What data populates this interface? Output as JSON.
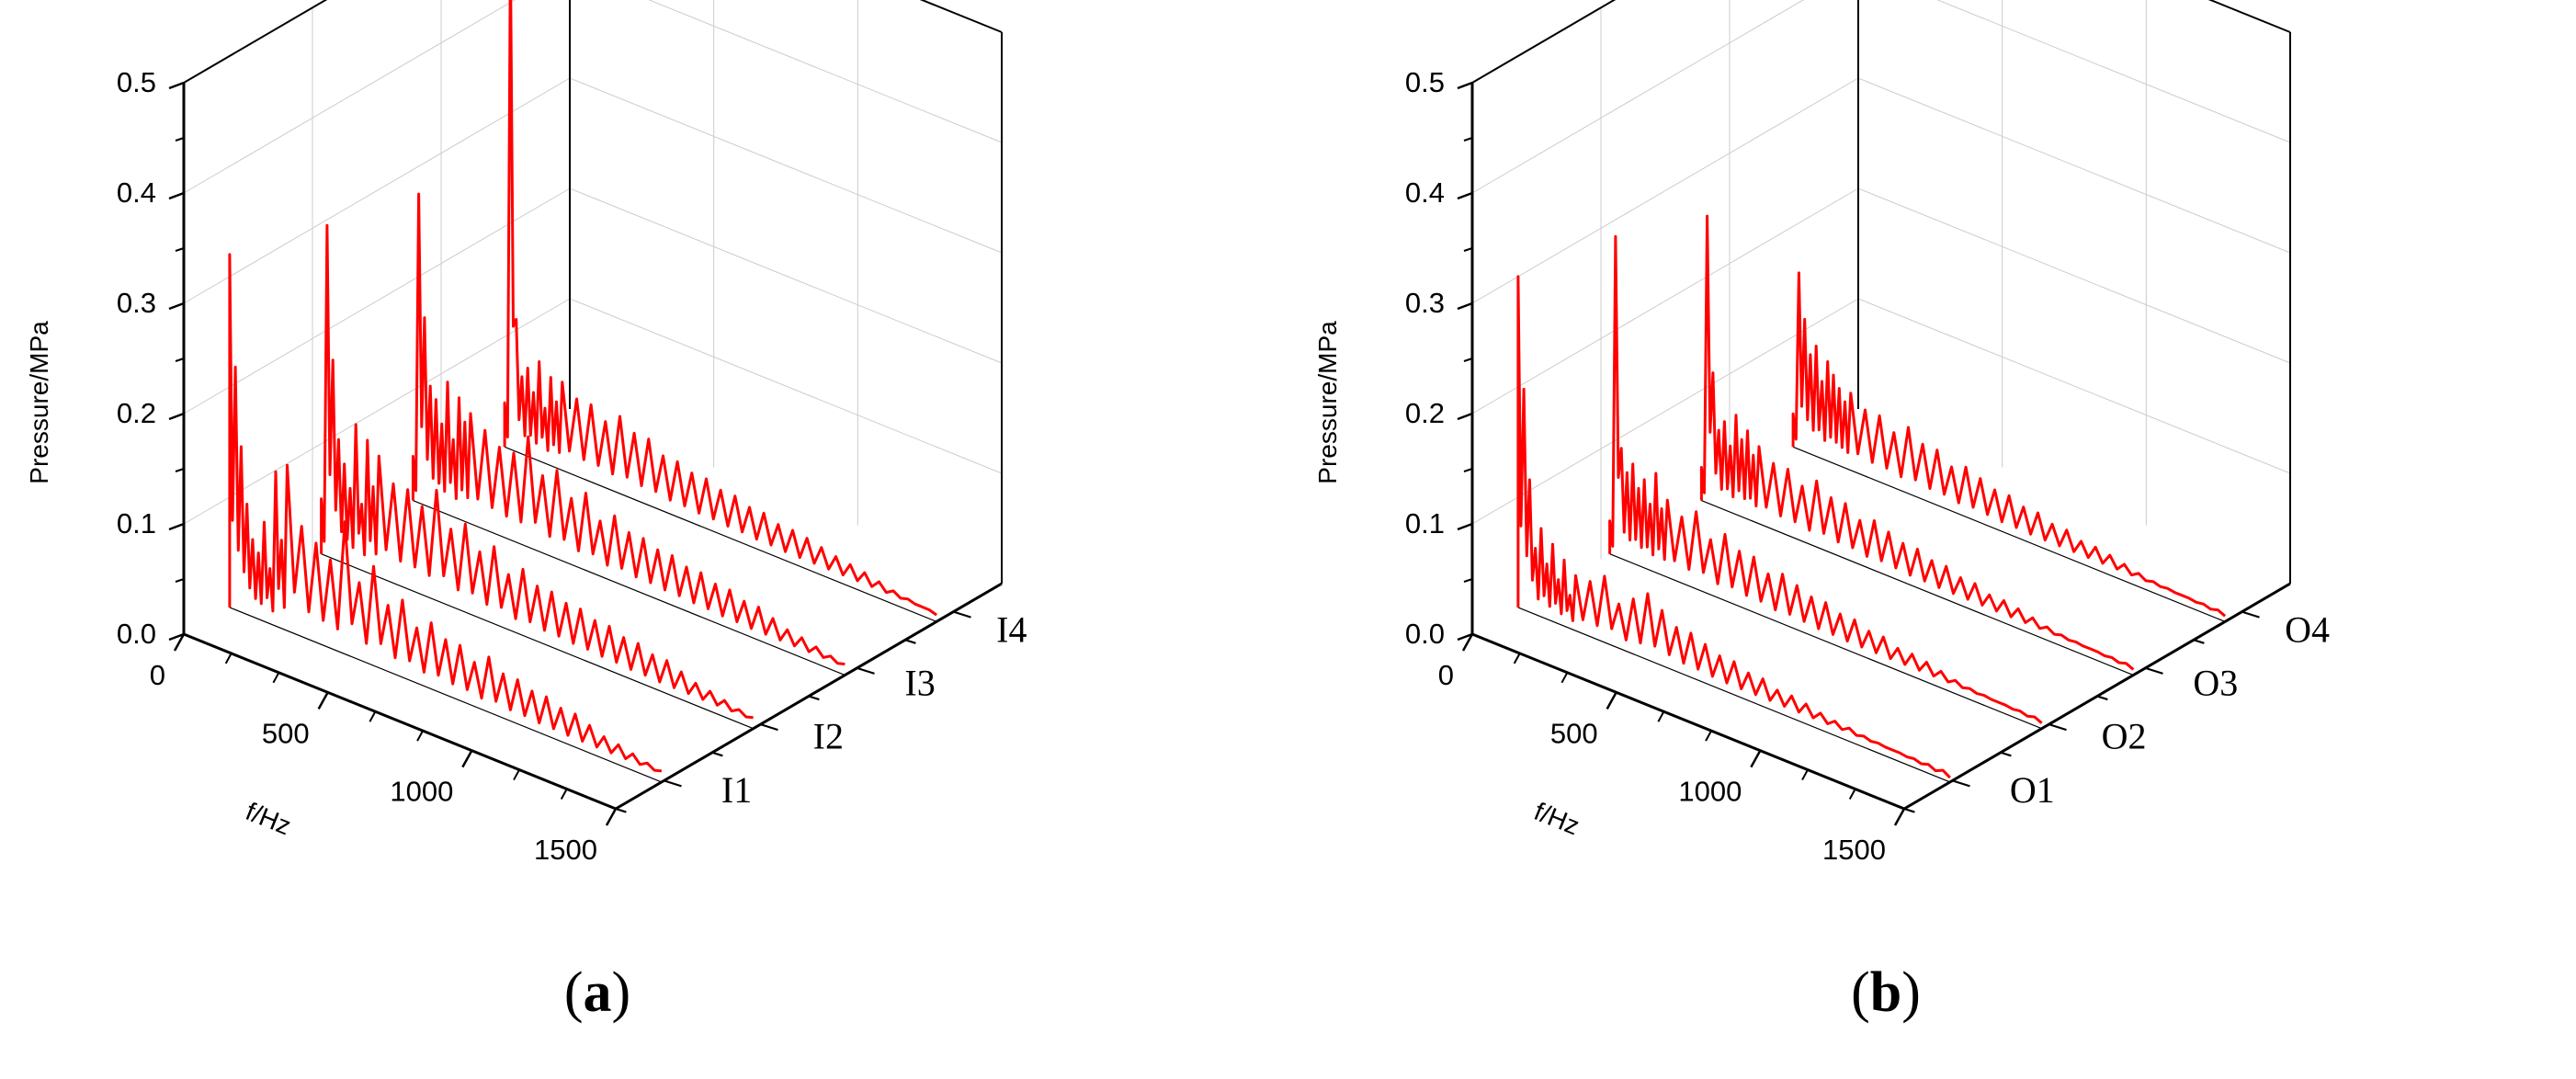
{
  "chart_data": [
    {
      "type": "line",
      "panel_label": "a",
      "title": "",
      "xlabel": "f/Hz",
      "ylabel": "Pressure/MPa",
      "zlabel": "",
      "xlim": [
        0,
        1500
      ],
      "ylim": [
        0,
        0.5
      ],
      "xticks": [
        "0",
        "500",
        "1000",
        "1500"
      ],
      "yticks": [
        "0.0",
        "0.1",
        "0.2",
        "0.3",
        "0.4",
        "0.5"
      ],
      "grid": true,
      "color": "#ff0000",
      "series": [
        {
          "name": "I1",
          "x": [
            0,
            20,
            40,
            60,
            80,
            100,
            120,
            140,
            160,
            180,
            200,
            250,
            300,
            350,
            400,
            450,
            500,
            550,
            600,
            650,
            700,
            750,
            800,
            850,
            900,
            950,
            1000,
            1050,
            1100,
            1150,
            1200,
            1250,
            1300,
            1350,
            1400,
            1450,
            1500
          ],
          "values": [
            0.32,
            0.22,
            0.15,
            0.1,
            0.07,
            0.06,
            0.09,
            0.05,
            0.14,
            0.08,
            0.15,
            0.1,
            0.09,
            0.08,
            0.12,
            0.07,
            0.09,
            0.06,
            0.07,
            0.05,
            0.06,
            0.05,
            0.05,
            0.04,
            0.05,
            0.04,
            0.04,
            0.035,
            0.035,
            0.03,
            0.03,
            0.025,
            0.02,
            0.018,
            0.015,
            0.012,
            0.01
          ]
        },
        {
          "name": "I2",
          "x": [
            0,
            20,
            40,
            60,
            80,
            100,
            120,
            140,
            160,
            180,
            200,
            250,
            300,
            350,
            400,
            450,
            500,
            550,
            600,
            650,
            700,
            750,
            800,
            850,
            900,
            950,
            1000,
            1050,
            1100,
            1150,
            1200,
            1250,
            1300,
            1350,
            1400,
            1450,
            1500
          ],
          "values": [
            0.05,
            0.3,
            0.18,
            0.11,
            0.09,
            0.07,
            0.13,
            0.06,
            0.12,
            0.08,
            0.11,
            0.09,
            0.09,
            0.08,
            0.1,
            0.07,
            0.08,
            0.06,
            0.07,
            0.05,
            0.06,
            0.05,
            0.05,
            0.045,
            0.045,
            0.04,
            0.04,
            0.035,
            0.035,
            0.03,
            0.03,
            0.025,
            0.02,
            0.018,
            0.015,
            0.012,
            0.01
          ]
        },
        {
          "name": "I3",
          "x": [
            0,
            20,
            40,
            60,
            80,
            100,
            120,
            140,
            160,
            180,
            200,
            250,
            300,
            350,
            400,
            450,
            500,
            550,
            600,
            650,
            700,
            750,
            800,
            850,
            900,
            950,
            1000,
            1050,
            1100,
            1150,
            1200,
            1250,
            1300,
            1350,
            1400,
            1450,
            1500
          ],
          "values": [
            0.04,
            0.28,
            0.17,
            0.11,
            0.1,
            0.08,
            0.12,
            0.07,
            0.11,
            0.09,
            0.1,
            0.09,
            0.08,
            0.08,
            0.1,
            0.07,
            0.08,
            0.06,
            0.07,
            0.05,
            0.06,
            0.05,
            0.05,
            0.045,
            0.045,
            0.04,
            0.04,
            0.035,
            0.035,
            0.03,
            0.03,
            0.025,
            0.02,
            0.018,
            0.015,
            0.012,
            0.01
          ]
        },
        {
          "name": "I4",
          "x": [
            0,
            20,
            40,
            60,
            80,
            100,
            120,
            140,
            160,
            180,
            200,
            250,
            300,
            350,
            400,
            450,
            500,
            550,
            600,
            650,
            700,
            750,
            800,
            850,
            900,
            950,
            1000,
            1050,
            1100,
            1150,
            1200,
            1250,
            1300,
            1350,
            1400,
            1450,
            1500
          ],
          "values": [
            0.04,
            0.45,
            0.12,
            0.07,
            0.08,
            0.06,
            0.09,
            0.05,
            0.08,
            0.06,
            0.08,
            0.07,
            0.07,
            0.06,
            0.07,
            0.06,
            0.06,
            0.05,
            0.05,
            0.045,
            0.045,
            0.04,
            0.04,
            0.035,
            0.035,
            0.03,
            0.03,
            0.028,
            0.025,
            0.022,
            0.02,
            0.018,
            0.015,
            0.012,
            0.01,
            0.008,
            0.006
          ]
        }
      ]
    },
    {
      "type": "line",
      "panel_label": "b",
      "title": "",
      "xlabel": "f/Hz",
      "ylabel": "Pressure/MPa",
      "zlabel": "",
      "xlim": [
        0,
        1500
      ],
      "ylim": [
        0,
        0.5
      ],
      "xticks": [
        "0",
        "500",
        "1000",
        "1500"
      ],
      "yticks": [
        "0.0",
        "0.1",
        "0.2",
        "0.3",
        "0.4",
        "0.5"
      ],
      "grid": true,
      "color": "#ff0000",
      "series": [
        {
          "name": "O1",
          "x": [
            0,
            20,
            40,
            60,
            80,
            100,
            120,
            140,
            160,
            180,
            200,
            250,
            300,
            350,
            400,
            450,
            500,
            550,
            600,
            650,
            700,
            750,
            800,
            850,
            900,
            950,
            1000,
            1050,
            1100,
            1150,
            1200,
            1250,
            1300,
            1350,
            1400,
            1450,
            1500
          ],
          "values": [
            0.3,
            0.2,
            0.12,
            0.06,
            0.08,
            0.05,
            0.07,
            0.04,
            0.06,
            0.03,
            0.05,
            0.05,
            0.06,
            0.04,
            0.05,
            0.06,
            0.05,
            0.04,
            0.04,
            0.035,
            0.03,
            0.03,
            0.025,
            0.025,
            0.02,
            0.02,
            0.018,
            0.015,
            0.013,
            0.012,
            0.01,
            0.009,
            0.008,
            0.007,
            0.006,
            0.005,
            0.004
          ]
        },
        {
          "name": "O2",
          "x": [
            0,
            20,
            40,
            60,
            80,
            100,
            120,
            140,
            160,
            180,
            200,
            250,
            300,
            350,
            400,
            450,
            500,
            550,
            600,
            650,
            700,
            750,
            800,
            850,
            900,
            950,
            1000,
            1050,
            1100,
            1150,
            1200,
            1250,
            1300,
            1350,
            1400,
            1450,
            1500
          ],
          "values": [
            0.03,
            0.29,
            0.1,
            0.08,
            0.09,
            0.07,
            0.08,
            0.06,
            0.09,
            0.06,
            0.07,
            0.06,
            0.07,
            0.05,
            0.06,
            0.05,
            0.05,
            0.04,
            0.045,
            0.04,
            0.035,
            0.035,
            0.03,
            0.03,
            0.025,
            0.025,
            0.02,
            0.02,
            0.018,
            0.015,
            0.012,
            0.01,
            0.009,
            0.008,
            0.007,
            0.006,
            0.005
          ]
        },
        {
          "name": "O3",
          "x": [
            0,
            20,
            40,
            60,
            80,
            100,
            120,
            140,
            160,
            180,
            200,
            250,
            300,
            350,
            400,
            450,
            500,
            550,
            600,
            650,
            700,
            750,
            800,
            850,
            900,
            950,
            1000,
            1050,
            1100,
            1150,
            1200,
            1250,
            1300,
            1350,
            1400,
            1450,
            1500
          ],
          "values": [
            0.03,
            0.26,
            0.12,
            0.07,
            0.08,
            0.06,
            0.09,
            0.07,
            0.08,
            0.06,
            0.07,
            0.06,
            0.06,
            0.05,
            0.06,
            0.05,
            0.05,
            0.04,
            0.045,
            0.04,
            0.035,
            0.035,
            0.03,
            0.03,
            0.025,
            0.025,
            0.02,
            0.02,
            0.018,
            0.015,
            0.012,
            0.01,
            0.009,
            0.008,
            0.007,
            0.006,
            0.005
          ]
        },
        {
          "name": "O4",
          "x": [
            0,
            20,
            40,
            60,
            80,
            100,
            120,
            140,
            160,
            180,
            200,
            250,
            300,
            350,
            400,
            450,
            500,
            550,
            600,
            650,
            700,
            750,
            800,
            850,
            900,
            950,
            1000,
            1050,
            1100,
            1150,
            1200,
            1250,
            1300,
            1350,
            1400,
            1450,
            1500
          ],
          "values": [
            0.03,
            0.16,
            0.12,
            0.09,
            0.1,
            0.07,
            0.09,
            0.08,
            0.07,
            0.06,
            0.07,
            0.06,
            0.06,
            0.05,
            0.06,
            0.05,
            0.05,
            0.04,
            0.045,
            0.04,
            0.035,
            0.035,
            0.03,
            0.03,
            0.025,
            0.025,
            0.02,
            0.02,
            0.018,
            0.015,
            0.012,
            0.01,
            0.009,
            0.008,
            0.007,
            0.006,
            0.005
          ]
        }
      ]
    }
  ]
}
